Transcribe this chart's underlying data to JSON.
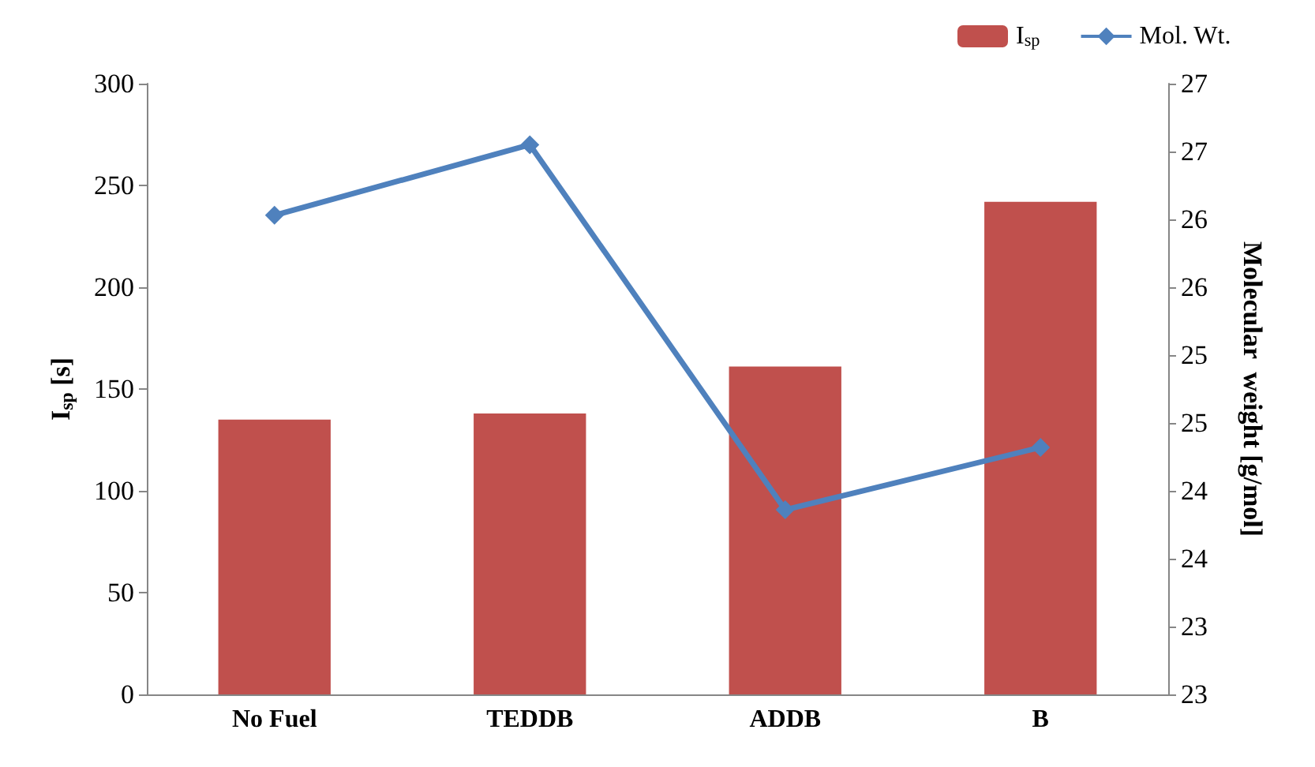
{
  "chart_data": {
    "type": "bar",
    "categories": [
      "No Fuel",
      "TEDDB",
      "ADDB",
      "B"
    ],
    "ylabel": "I$_{sp}$ [s]",
    "y2label": "Molecular  weight [g/mol]",
    "ylim": [
      0,
      300
    ],
    "yticks": [
      0,
      50,
      100,
      150,
      200,
      250,
      300
    ],
    "y2lim": [
      22.75,
      27.25
    ],
    "y2ticks": [
      {
        "value": 22.75,
        "label": "23"
      },
      {
        "value": 23.25,
        "label": "23"
      },
      {
        "value": 23.75,
        "label": "24"
      },
      {
        "value": 24.25,
        "label": "24"
      },
      {
        "value": 24.75,
        "label": "25"
      },
      {
        "value": 25.25,
        "label": "25"
      },
      {
        "value": 25.75,
        "label": "26"
      },
      {
        "value": 26.25,
        "label": "26"
      },
      {
        "value": 26.75,
        "label": "27"
      },
      {
        "value": 27.25,
        "label": "27"
      }
    ],
    "series": [
      {
        "name": "I$_{sp}$",
        "color": "#c0504d",
        "values": [
          135,
          138,
          161,
          242
        ]
      },
      {
        "name": "Mol. Wt.",
        "type": "line",
        "axis": "y2",
        "color": "#4f81bd",
        "marker": "diamond",
        "values": [
          26.28,
          26.8,
          24.11,
          24.57
        ]
      }
    ],
    "legend": "top right",
    "grid": false
  }
}
